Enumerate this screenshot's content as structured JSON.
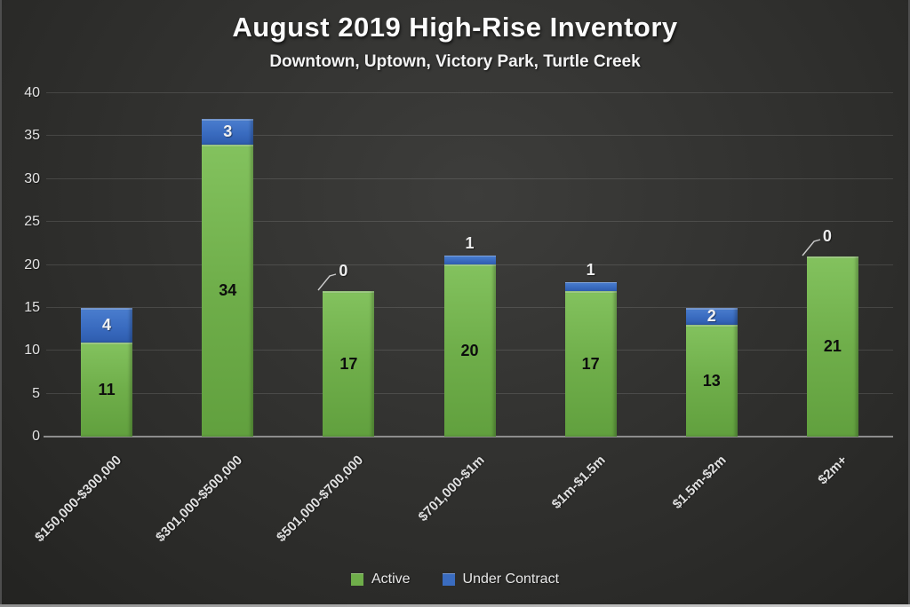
{
  "chart_data": {
    "type": "bar",
    "stacked": true,
    "title": "August 2019 High-Rise Inventory",
    "subtitle": "Downtown, Uptown, Victory Park, Turtle Creek",
    "categories": [
      "$150,000-$300,000",
      "$301,000-$500,000",
      "$501,000-$700,000",
      "$701,000-$1m",
      "$1m-$1.5m",
      "$1.5m-$2m",
      "$2m+"
    ],
    "series": [
      {
        "name": "Active",
        "color": "#6fae4a",
        "values": [
          11,
          34,
          17,
          20,
          17,
          13,
          21
        ]
      },
      {
        "name": "Under Contract",
        "color": "#3a6cc0",
        "values": [
          4,
          3,
          0,
          1,
          1,
          2,
          0
        ]
      }
    ],
    "totals": [
      15,
      37,
      17,
      21,
      18,
      15,
      21
    ],
    "ylim": [
      0,
      40
    ],
    "yticks": [
      0,
      5,
      10,
      15,
      20,
      25,
      30,
      35,
      40
    ],
    "grid": true,
    "legend_position": "bottom",
    "background_color": "#323230",
    "axis_line_color": "#8d8d8d",
    "callout_line_color": "#cccccc"
  }
}
